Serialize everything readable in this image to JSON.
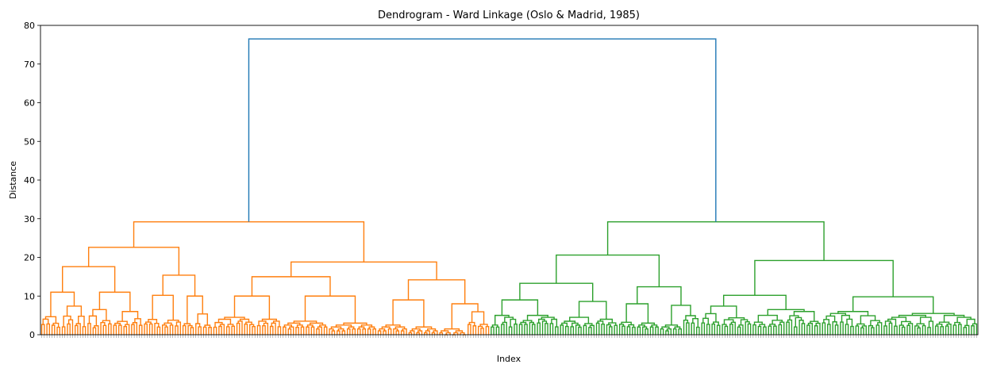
{
  "chart_data": {
    "type": "dendrogram",
    "title": "Dendrogram - Ward Linkage (Oslo & Madrid, 1985)",
    "xlabel": "Index",
    "ylabel": "Distance",
    "ylim": [
      0,
      80
    ],
    "yticks": [
      0,
      10,
      20,
      30,
      40,
      50,
      60,
      70,
      80
    ],
    "leaf_count": 365,
    "grid": false,
    "legend": "none",
    "clusters": [
      {
        "name": "",
        "color": "#ff7f0e",
        "leaf_share": 0.48,
        "merge_height": 29.2,
        "sub_merges": [
          26.8,
          22.6,
          18.8,
          17.6,
          15.4,
          15.0,
          14.2,
          11.0,
          11.0,
          10.2,
          10.0,
          10.0,
          10.0,
          9.0,
          8.0,
          7.5,
          7.4,
          6.5,
          6.0,
          6.0,
          5.5,
          5.0,
          5.0,
          4.5,
          4.0,
          3.5,
          3.0,
          2.5,
          2.0,
          1.5
        ]
      },
      {
        "name": "",
        "color": "#2ca02c",
        "leaf_share": 0.52,
        "merge_height": 29.2,
        "sub_merges": [
          24.5,
          20.6,
          19.2,
          13.3,
          12.4,
          10.2,
          9.8,
          9.0,
          8.6,
          8.0,
          7.6,
          7.4,
          6.5,
          6.0,
          5.5,
          5.0,
          5.0,
          4.5,
          4.0,
          3.5,
          3.0,
          2.5,
          2.0,
          1.5
        ]
      }
    ],
    "root": {
      "color": "#1f77b4",
      "merge_height": 76.5
    }
  }
}
